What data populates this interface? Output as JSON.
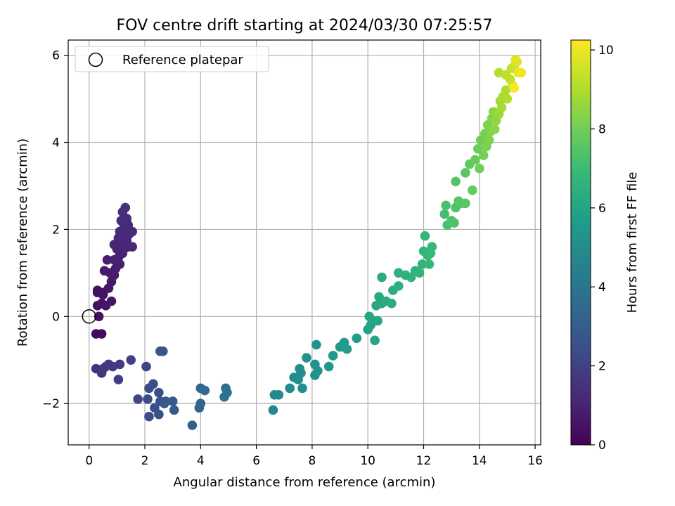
{
  "chart_data": {
    "type": "scatter",
    "title": "FOV centre drift starting at 2024/03/30 07:25:57",
    "xlabel": "Angular distance from reference (arcmin)",
    "ylabel": "Rotation from reference (arcmin)",
    "xlim": [
      -0.75,
      16.2
    ],
    "ylim": [
      -2.95,
      6.35
    ],
    "xticks": [
      0,
      2,
      4,
      6,
      8,
      10,
      12,
      14,
      16
    ],
    "yticks": [
      -2,
      0,
      2,
      4,
      6
    ],
    "xtick_labels": [
      "0",
      "2",
      "4",
      "6",
      "8",
      "10",
      "12",
      "14",
      "16"
    ],
    "ytick_labels": [
      "−2",
      "0",
      "2",
      "4",
      "6"
    ],
    "grid": true,
    "legend": {
      "position": "top-left",
      "label": "Reference platepar"
    },
    "reference_point": {
      "x": 0,
      "y": 0
    },
    "colorbar": {
      "label": "Hours from first FF file",
      "range": [
        0,
        10.25
      ],
      "ticks": [
        0,
        2,
        4,
        6,
        8,
        10
      ],
      "tick_labels": [
        "0",
        "2",
        "4",
        "6",
        "8",
        "10"
      ],
      "colormap": "viridis"
    },
    "colormap_stops": [
      "#440154",
      "#482878",
      "#3e4989",
      "#31688e",
      "#26828e",
      "#1f9e89",
      "#35b779",
      "#6ece58",
      "#b5de2b",
      "#fde725"
    ],
    "series": [
      {
        "points": [
          [
            0.25,
            -0.4,
            0.3
          ],
          [
            0.45,
            -0.4,
            0.3
          ],
          [
            0.35,
            0.0,
            0.4
          ],
          [
            0.3,
            0.25,
            0.45
          ],
          [
            0.45,
            0.3,
            0.5
          ],
          [
            0.6,
            0.25,
            0.55
          ],
          [
            0.8,
            0.35,
            0.6
          ],
          [
            0.3,
            0.6,
            0.5
          ],
          [
            0.5,
            0.55,
            0.6
          ],
          [
            0.7,
            0.65,
            0.65
          ],
          [
            0.8,
            0.8,
            0.7
          ],
          [
            0.9,
            0.95,
            0.75
          ],
          [
            0.55,
            1.05,
            0.75
          ],
          [
            0.75,
            1.0,
            0.8
          ],
          [
            0.95,
            1.1,
            0.85
          ],
          [
            1.1,
            1.2,
            0.9
          ],
          [
            0.65,
            1.3,
            0.85
          ],
          [
            0.9,
            1.3,
            0.9
          ],
          [
            1.05,
            1.35,
            0.95
          ],
          [
            1.2,
            1.45,
            1.0
          ],
          [
            1.0,
            1.55,
            1.0
          ],
          [
            1.25,
            1.55,
            1.05
          ],
          [
            1.4,
            1.6,
            1.05
          ],
          [
            1.55,
            1.6,
            1.1
          ],
          [
            0.9,
            1.65,
            1.1
          ],
          [
            1.2,
            1.7,
            1.1
          ],
          [
            1.35,
            1.75,
            1.15
          ],
          [
            1.05,
            1.8,
            1.15
          ],
          [
            1.3,
            1.85,
            1.15
          ],
          [
            1.45,
            1.9,
            1.2
          ],
          [
            1.55,
            1.95,
            1.2
          ],
          [
            1.1,
            1.95,
            1.2
          ],
          [
            1.25,
            2.05,
            1.25
          ],
          [
            1.4,
            2.1,
            1.25
          ],
          [
            1.15,
            2.2,
            1.3
          ],
          [
            1.35,
            2.25,
            1.3
          ],
          [
            1.2,
            2.4,
            1.35
          ],
          [
            1.3,
            2.5,
            1.4
          ],
          [
            0.3,
            0.55,
            0.45
          ],
          [
            0.5,
            0.5,
            0.5
          ],
          [
            0.25,
            -1.2,
            1.5
          ],
          [
            0.5,
            -1.2,
            1.6
          ],
          [
            0.45,
            -1.3,
            1.7
          ],
          [
            0.7,
            -1.1,
            1.7
          ],
          [
            0.85,
            -1.15,
            1.75
          ],
          [
            1.1,
            -1.1,
            1.8
          ],
          [
            0.6,
            -1.15,
            1.8
          ],
          [
            1.05,
            -1.45,
            1.9
          ],
          [
            1.5,
            -1.0,
            2.0
          ],
          [
            2.05,
            -1.15,
            2.1
          ],
          [
            1.75,
            -1.9,
            2.2
          ],
          [
            2.1,
            -1.9,
            2.3
          ],
          [
            2.15,
            -2.3,
            2.3
          ],
          [
            2.15,
            -1.65,
            2.4
          ],
          [
            2.3,
            -1.55,
            2.45
          ],
          [
            2.35,
            -2.1,
            2.5
          ],
          [
            2.5,
            -1.75,
            2.55
          ],
          [
            2.5,
            -2.25,
            2.6
          ],
          [
            2.55,
            -1.95,
            2.6
          ],
          [
            2.7,
            -2.0,
            2.7
          ],
          [
            2.55,
            -0.8,
            2.7
          ],
          [
            2.65,
            -0.8,
            2.75
          ],
          [
            2.75,
            -1.95,
            2.8
          ],
          [
            3.0,
            -1.95,
            2.85
          ],
          [
            3.05,
            -2.15,
            2.9
          ],
          [
            3.7,
            -2.5,
            3.1
          ],
          [
            3.95,
            -2.1,
            3.3
          ],
          [
            4.0,
            -2.0,
            3.35
          ],
          [
            4.0,
            -1.65,
            3.4
          ],
          [
            4.15,
            -1.7,
            3.5
          ],
          [
            4.85,
            -1.85,
            3.75
          ],
          [
            4.9,
            -1.65,
            3.8
          ],
          [
            4.95,
            -1.75,
            3.85
          ],
          [
            6.6,
            -2.15,
            4.7
          ],
          [
            6.65,
            -1.8,
            4.8
          ],
          [
            6.8,
            -1.8,
            4.85
          ],
          [
            7.2,
            -1.65,
            4.95
          ],
          [
            7.35,
            -1.4,
            5.0
          ],
          [
            7.5,
            -1.45,
            5.05
          ],
          [
            7.55,
            -1.2,
            5.1
          ],
          [
            7.65,
            -1.65,
            5.1
          ],
          [
            7.6,
            -1.3,
            5.1
          ],
          [
            7.8,
            -0.95,
            5.15
          ],
          [
            8.1,
            -1.1,
            5.2
          ],
          [
            8.1,
            -1.35,
            5.25
          ],
          [
            8.2,
            -1.25,
            5.3
          ],
          [
            8.15,
            -0.65,
            5.3
          ],
          [
            8.6,
            -1.15,
            5.4
          ],
          [
            8.75,
            -0.9,
            5.45
          ],
          [
            9.0,
            -0.7,
            5.5
          ],
          [
            9.15,
            -0.6,
            5.55
          ],
          [
            9.25,
            -0.75,
            5.6
          ],
          [
            9.6,
            -0.5,
            5.7
          ],
          [
            10.0,
            -0.3,
            5.85
          ],
          [
            10.1,
            -0.2,
            5.9
          ],
          [
            10.05,
            0.0,
            5.95
          ],
          [
            10.2,
            -0.1,
            6.0
          ],
          [
            10.25,
            -0.55,
            6.0
          ],
          [
            10.35,
            -0.1,
            6.05
          ],
          [
            10.3,
            0.25,
            6.1
          ],
          [
            10.4,
            0.45,
            6.15
          ],
          [
            10.5,
            0.3,
            6.2
          ],
          [
            10.5,
            0.9,
            6.3
          ],
          [
            10.65,
            0.35,
            6.3
          ],
          [
            10.85,
            0.3,
            6.35
          ],
          [
            10.9,
            0.6,
            6.4
          ],
          [
            11.1,
            0.7,
            6.45
          ],
          [
            11.1,
            1.0,
            6.5
          ],
          [
            11.35,
            0.95,
            6.55
          ],
          [
            11.55,
            0.9,
            6.6
          ],
          [
            11.7,
            1.05,
            6.65
          ],
          [
            11.85,
            1.0,
            6.7
          ],
          [
            11.95,
            1.2,
            6.7
          ],
          [
            12.0,
            1.5,
            6.75
          ],
          [
            12.05,
            1.85,
            6.8
          ],
          [
            12.15,
            1.4,
            6.8
          ],
          [
            12.2,
            1.2,
            6.85
          ],
          [
            12.3,
            1.6,
            6.85
          ],
          [
            12.25,
            1.45,
            6.9
          ],
          [
            12.75,
            2.35,
            7.2
          ],
          [
            12.8,
            2.55,
            7.25
          ],
          [
            12.85,
            2.1,
            7.25
          ],
          [
            13.0,
            2.2,
            7.3
          ],
          [
            13.1,
            2.15,
            7.35
          ],
          [
            13.15,
            2.5,
            7.4
          ],
          [
            13.25,
            2.65,
            7.45
          ],
          [
            13.35,
            2.6,
            7.5
          ],
          [
            13.15,
            3.1,
            7.5
          ],
          [
            13.5,
            2.6,
            7.55
          ],
          [
            13.5,
            3.3,
            7.6
          ],
          [
            13.65,
            3.5,
            7.7
          ],
          [
            13.75,
            2.9,
            7.75
          ],
          [
            13.85,
            3.6,
            7.8
          ],
          [
            13.95,
            3.85,
            7.9
          ],
          [
            14.0,
            3.4,
            7.95
          ],
          [
            14.05,
            4.05,
            8.0
          ],
          [
            14.15,
            3.7,
            8.05
          ],
          [
            14.2,
            4.2,
            8.1
          ],
          [
            14.25,
            3.9,
            8.15
          ],
          [
            14.3,
            4.4,
            8.2
          ],
          [
            14.35,
            4.05,
            8.25
          ],
          [
            14.4,
            4.25,
            8.3
          ],
          [
            14.45,
            4.55,
            8.35
          ],
          [
            14.5,
            4.7,
            8.45
          ],
          [
            14.55,
            4.3,
            8.5
          ],
          [
            14.6,
            4.5,
            8.55
          ],
          [
            14.7,
            4.65,
            8.65
          ],
          [
            14.75,
            4.95,
            8.75
          ],
          [
            14.8,
            4.8,
            8.8
          ],
          [
            14.85,
            5.05,
            8.9
          ],
          [
            14.95,
            5.2,
            9.0
          ],
          [
            15.0,
            5.0,
            9.05
          ],
          [
            14.7,
            5.6,
            9.1
          ],
          [
            14.95,
            5.55,
            9.2
          ],
          [
            15.1,
            5.45,
            9.3
          ],
          [
            15.15,
            5.7,
            9.4
          ],
          [
            15.25,
            5.75,
            9.5
          ],
          [
            15.2,
            5.3,
            9.55
          ],
          [
            15.3,
            5.9,
            9.7
          ],
          [
            15.35,
            5.85,
            9.8
          ],
          [
            15.4,
            5.6,
            9.9
          ],
          [
            15.5,
            5.6,
            10.1
          ],
          [
            15.25,
            5.25,
            10.2
          ]
        ]
      }
    ]
  }
}
